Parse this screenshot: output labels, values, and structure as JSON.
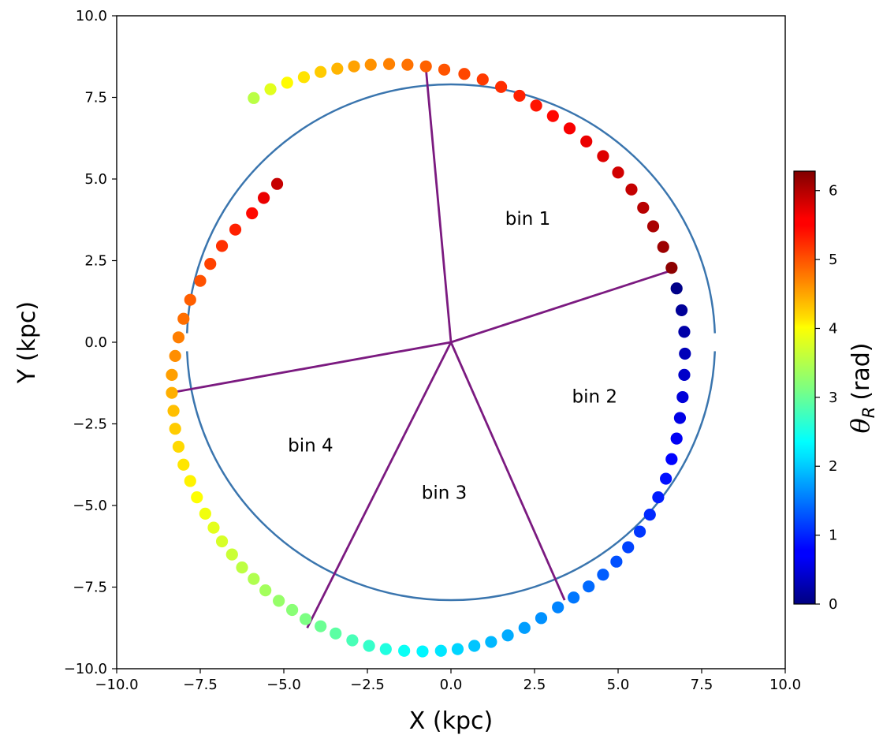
{
  "chart_data": {
    "type": "scatter",
    "xlabel": "X (kpc)",
    "ylabel": "Y (kpc)",
    "xlim": [
      -10,
      10
    ],
    "ylim": [
      -10,
      10
    ],
    "xticks": [
      "−10.0",
      "−7.5",
      "−5.0",
      "−2.5",
      "0.0",
      "2.5",
      "5.0",
      "7.5",
      "10.0"
    ],
    "yticks": [
      "−10.0",
      "−7.5",
      "−5.0",
      "−2.5",
      "0.0",
      "2.5",
      "5.0",
      "7.5",
      "10.0"
    ],
    "grid": false,
    "circle": {
      "center": [
        0,
        0
      ],
      "radius": 7.9,
      "color": "#3a75ae"
    },
    "bin_lines": {
      "color": "#7b1a80",
      "endpoints": [
        [
          -0.75,
          8.4
        ],
        [
          6.6,
          2.2
        ],
        [
          3.4,
          -7.9
        ],
        [
          -4.3,
          -8.75
        ],
        [
          -8.4,
          -1.55
        ]
      ]
    },
    "bins": [
      {
        "label": "bin 1",
        "x": 2.3,
        "y": 3.6
      },
      {
        "label": "bin 2",
        "x": 4.3,
        "y": -1.85
      },
      {
        "label": "bin 3",
        "x": -0.2,
        "y": -4.8
      },
      {
        "label": "bin 4",
        "x": -4.2,
        "y": -3.35
      }
    ],
    "colorbar": {
      "label_symbol": "θ",
      "label_sub": "R",
      "label_unit": "(rad)",
      "min": 0,
      "max": 6.283,
      "ticks": [
        "0",
        "1",
        "2",
        "3",
        "4",
        "5",
        "6"
      ],
      "colormap": "jet"
    },
    "points": [
      {
        "x": 6.75,
        "y": 1.65,
        "theta_R": 0.05
      },
      {
        "x": 6.9,
        "y": 0.98,
        "theta_R": 0.15
      },
      {
        "x": 6.98,
        "y": 0.32,
        "theta_R": 0.25
      },
      {
        "x": 7.0,
        "y": -0.35,
        "theta_R": 0.35
      },
      {
        "x": 6.98,
        "y": -1.0,
        "theta_R": 0.45
      },
      {
        "x": 6.93,
        "y": -1.68,
        "theta_R": 0.55
      },
      {
        "x": 6.85,
        "y": -2.32,
        "theta_R": 0.63
      },
      {
        "x": 6.75,
        "y": -2.95,
        "theta_R": 0.72
      },
      {
        "x": 6.6,
        "y": -3.58,
        "theta_R": 0.8
      },
      {
        "x": 6.43,
        "y": -4.18,
        "theta_R": 0.88
      },
      {
        "x": 6.2,
        "y": -4.75,
        "theta_R": 0.96
      },
      {
        "x": 5.95,
        "y": -5.28,
        "theta_R": 1.04
      },
      {
        "x": 5.65,
        "y": -5.8,
        "theta_R": 1.12
      },
      {
        "x": 5.3,
        "y": -6.28,
        "theta_R": 1.2
      },
      {
        "x": 4.95,
        "y": -6.72,
        "theta_R": 1.28
      },
      {
        "x": 4.55,
        "y": -7.12,
        "theta_R": 1.36
      },
      {
        "x": 4.12,
        "y": -7.48,
        "theta_R": 1.44
      },
      {
        "x": 3.67,
        "y": -7.82,
        "theta_R": 1.52
      },
      {
        "x": 3.2,
        "y": -8.12,
        "theta_R": 1.6
      },
      {
        "x": 2.7,
        "y": -8.45,
        "theta_R": 1.68
      },
      {
        "x": 2.2,
        "y": -8.75,
        "theta_R": 1.76
      },
      {
        "x": 1.7,
        "y": -8.98,
        "theta_R": 1.84
      },
      {
        "x": 1.2,
        "y": -9.18,
        "theta_R": 1.92
      },
      {
        "x": 0.7,
        "y": -9.3,
        "theta_R": 2.0
      },
      {
        "x": 0.2,
        "y": -9.4,
        "theta_R": 2.1
      },
      {
        "x": -0.3,
        "y": -9.45,
        "theta_R": 2.2
      },
      {
        "x": -0.85,
        "y": -9.47,
        "theta_R": 2.3
      },
      {
        "x": -1.4,
        "y": -9.45,
        "theta_R": 2.42
      },
      {
        "x": -1.95,
        "y": -9.4,
        "theta_R": 2.55
      },
      {
        "x": -2.45,
        "y": -9.3,
        "theta_R": 2.68
      },
      {
        "x": -2.95,
        "y": -9.13,
        "theta_R": 2.8
      },
      {
        "x": -3.45,
        "y": -8.92,
        "theta_R": 2.92
      },
      {
        "x": -3.9,
        "y": -8.7,
        "theta_R": 3.02
      },
      {
        "x": -4.35,
        "y": -8.48,
        "theta_R": 3.12
      },
      {
        "x": -4.75,
        "y": -8.2,
        "theta_R": 3.2
      },
      {
        "x": -5.15,
        "y": -7.92,
        "theta_R": 3.28
      },
      {
        "x": -5.55,
        "y": -7.6,
        "theta_R": 3.36
      },
      {
        "x": -5.9,
        "y": -7.25,
        "theta_R": 3.44
      },
      {
        "x": -6.25,
        "y": -6.9,
        "theta_R": 3.52
      },
      {
        "x": -6.55,
        "y": -6.5,
        "theta_R": 3.6
      },
      {
        "x": -6.85,
        "y": -6.1,
        "theta_R": 3.68
      },
      {
        "x": -7.1,
        "y": -5.68,
        "theta_R": 3.76
      },
      {
        "x": -7.35,
        "y": -5.25,
        "theta_R": 3.84
      },
      {
        "x": -7.6,
        "y": -4.75,
        "theta_R": 3.92
      },
      {
        "x": -7.8,
        "y": -4.25,
        "theta_R": 4.0
      },
      {
        "x": -8.0,
        "y": -3.75,
        "theta_R": 4.08
      },
      {
        "x": -8.15,
        "y": -3.2,
        "theta_R": 4.16
      },
      {
        "x": -8.25,
        "y": -2.65,
        "theta_R": 4.24
      },
      {
        "x": -8.3,
        "y": -2.1,
        "theta_R": 4.32
      },
      {
        "x": -8.35,
        "y": -1.55,
        "theta_R": 4.42
      },
      {
        "x": -8.35,
        "y": -1.0,
        "theta_R": 4.52
      },
      {
        "x": -8.25,
        "y": -0.42,
        "theta_R": 4.62
      },
      {
        "x": -8.15,
        "y": 0.15,
        "theta_R": 4.72
      },
      {
        "x": -8.0,
        "y": 0.72,
        "theta_R": 4.82
      },
      {
        "x": -7.8,
        "y": 1.3,
        "theta_R": 4.92
      },
      {
        "x": -7.5,
        "y": 1.88,
        "theta_R": 5.0
      },
      {
        "x": -7.2,
        "y": 2.4,
        "theta_R": 5.1
      },
      {
        "x": -6.85,
        "y": 2.95,
        "theta_R": 5.2
      },
      {
        "x": -6.45,
        "y": 3.45,
        "theta_R": 5.3
      },
      {
        "x": -5.95,
        "y": 3.95,
        "theta_R": 5.45
      },
      {
        "x": -5.6,
        "y": 4.42,
        "theta_R": 5.62
      },
      {
        "x": -5.2,
        "y": 4.85,
        "theta_R": 5.85
      },
      {
        "x": -5.9,
        "y": 7.48,
        "theta_R": 3.5
      },
      {
        "x": -5.4,
        "y": 7.75,
        "theta_R": 3.75
      },
      {
        "x": -4.9,
        "y": 7.95,
        "theta_R": 3.95
      },
      {
        "x": -4.4,
        "y": 8.12,
        "theta_R": 4.1
      },
      {
        "x": -3.9,
        "y": 8.28,
        "theta_R": 4.25
      },
      {
        "x": -3.4,
        "y": 8.38,
        "theta_R": 4.38
      },
      {
        "x": -2.9,
        "y": 8.45,
        "theta_R": 4.5
      },
      {
        "x": -2.4,
        "y": 8.5,
        "theta_R": 4.6
      },
      {
        "x": -1.85,
        "y": 8.52,
        "theta_R": 4.7
      },
      {
        "x": -1.3,
        "y": 8.5,
        "theta_R": 4.8
      },
      {
        "x": -0.75,
        "y": 8.45,
        "theta_R": 4.9
      },
      {
        "x": -0.2,
        "y": 8.35,
        "theta_R": 4.98
      },
      {
        "x": 0.4,
        "y": 8.22,
        "theta_R": 5.06
      },
      {
        "x": 0.95,
        "y": 8.05,
        "theta_R": 5.14
      },
      {
        "x": 1.5,
        "y": 7.82,
        "theta_R": 5.22
      },
      {
        "x": 2.05,
        "y": 7.55,
        "theta_R": 5.3
      },
      {
        "x": 2.55,
        "y": 7.25,
        "theta_R": 5.38
      },
      {
        "x": 3.05,
        "y": 6.93,
        "theta_R": 5.46
      },
      {
        "x": 3.55,
        "y": 6.55,
        "theta_R": 5.54
      },
      {
        "x": 4.05,
        "y": 6.15,
        "theta_R": 5.62
      },
      {
        "x": 4.55,
        "y": 5.7,
        "theta_R": 5.7
      },
      {
        "x": 5.0,
        "y": 5.2,
        "theta_R": 5.78
      },
      {
        "x": 5.4,
        "y": 4.68,
        "theta_R": 5.86
      },
      {
        "x": 5.75,
        "y": 4.12,
        "theta_R": 5.94
      },
      {
        "x": 6.05,
        "y": 3.55,
        "theta_R": 6.02
      },
      {
        "x": 6.35,
        "y": 2.92,
        "theta_R": 6.1
      },
      {
        "x": 6.6,
        "y": 2.28,
        "theta_R": 6.2
      }
    ]
  }
}
